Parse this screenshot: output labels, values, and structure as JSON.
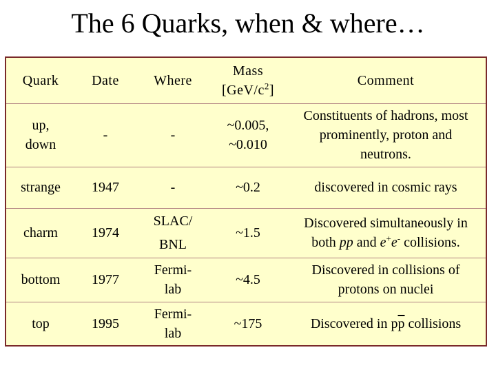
{
  "title": "The 6 Quarks, when & where…",
  "headers": {
    "quark": "Quark",
    "date": "Date",
    "where": "Where",
    "mass_line1": "Mass",
    "mass_line2_a": "[GeV/c",
    "mass_line2_sup": "2",
    "mass_line2_b": "]",
    "comment": "Comment"
  },
  "rows": [
    {
      "quark_l1": "up,",
      "quark_l2": "down",
      "date": "-",
      "where": "-",
      "mass_l1": "~0.005,",
      "mass_l2": "~0.010",
      "comment_l1": "Constituents of hadrons, most",
      "comment_l2": "prominently, proton and",
      "comment_l3": "neutrons."
    },
    {
      "quark": "strange",
      "date": "1947",
      "where": "-",
      "mass": "~0.2",
      "comment": "discovered in cosmic rays"
    },
    {
      "quark": "charm",
      "date": "1974",
      "where_l1": "SLAC/",
      "where_l2": "BNL",
      "mass": "~1.5",
      "comment_l1": "Discovered simultaneously in",
      "comment_l2_a": "both ",
      "comment_l2_pp": "pp",
      "comment_l2_b": " and ",
      "comment_l2_e1": "e",
      "comment_l2_plus": "+",
      "comment_l2_e2": "e",
      "comment_l2_minus": "-",
      "comment_l2_c": " collisions."
    },
    {
      "quark": "bottom",
      "date": "1977",
      "where_l1": "Fermi-",
      "where_l2": "lab",
      "mass": "~4.5",
      "comment_l1": "Discovered in collisions of",
      "comment_l2": "protons on nuclei"
    },
    {
      "quark": "top",
      "date": "1995",
      "where_l1": "Fermi-",
      "where_l2": "lab",
      "mass": "~175",
      "comment_a": "Discovered in p",
      "comment_pbar": "p",
      "comment_b": " collisions"
    }
  ],
  "colors": {
    "table_bg": "#ffffcc",
    "border": "#7a2a2a"
  }
}
